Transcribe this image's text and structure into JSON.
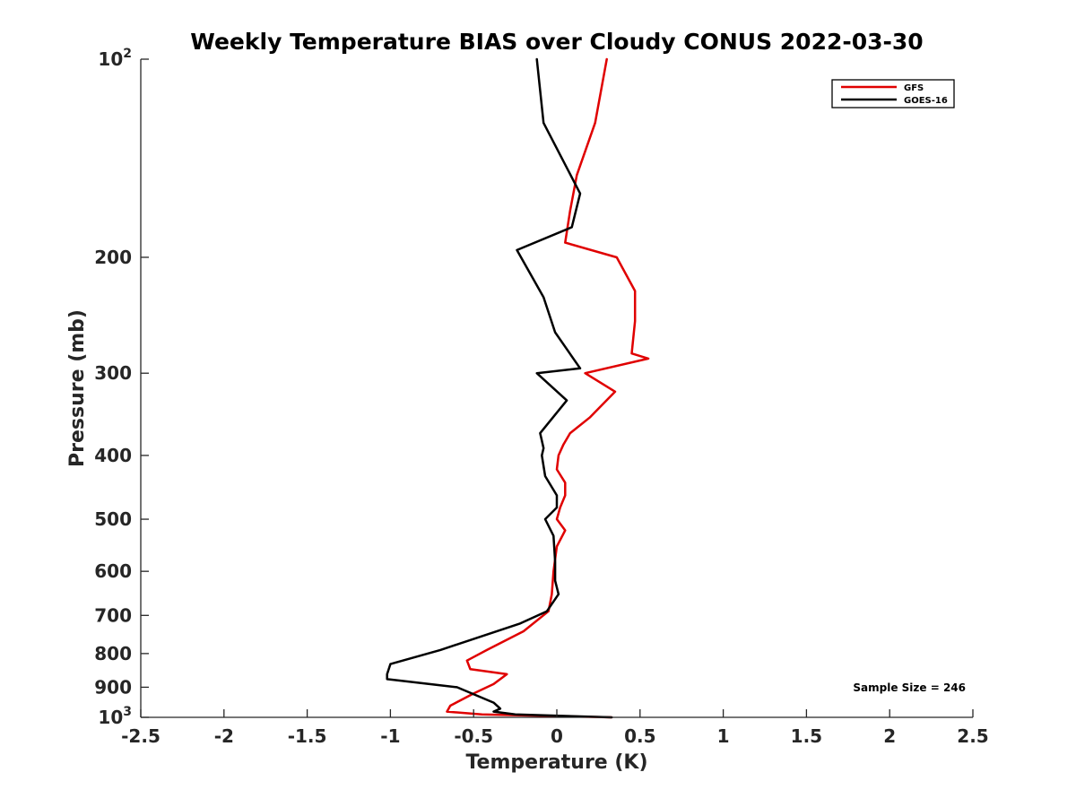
{
  "chart_data": {
    "type": "line",
    "title": "Weekly Temperature BIAS over Cloudy CONUS 2022-03-30",
    "xlabel": "Temperature (K)",
    "ylabel": "Pressure (mb)",
    "xlim": [
      -2.5,
      2.5
    ],
    "ylim": [
      100,
      1000
    ],
    "y_scale": "log",
    "y_reversed": true,
    "x_ticks": [
      -2.5,
      -2,
      -1.5,
      -1,
      -0.5,
      0,
      0.5,
      1,
      1.5,
      2,
      2.5
    ],
    "x_tick_labels": [
      "-2.5",
      "-2",
      "-1.5",
      "-1",
      "-0.5",
      "0",
      "0.5",
      "1",
      "1.5",
      "2",
      "2.5"
    ],
    "y_ticks": [
      {
        "value": 100,
        "base": "10",
        "exp": "2"
      },
      {
        "value": 200,
        "label": "200"
      },
      {
        "value": 300,
        "label": "300"
      },
      {
        "value": 400,
        "label": "400"
      },
      {
        "value": 500,
        "label": "500"
      },
      {
        "value": 600,
        "label": "600"
      },
      {
        "value": 700,
        "label": "700"
      },
      {
        "value": 800,
        "label": "800"
      },
      {
        "value": 900,
        "label": "900"
      },
      {
        "value": 1000,
        "base": "10",
        "exp": "3"
      }
    ],
    "legend_position": "top-right",
    "grid": false,
    "series": [
      {
        "name": "GFS",
        "color": "#e00000",
        "points": [
          [
            0.3,
            100
          ],
          [
            0.23,
            125
          ],
          [
            0.12,
            150
          ],
          [
            0.08,
            170
          ],
          [
            0.05,
            190
          ],
          [
            0.36,
            200
          ],
          [
            0.47,
            225
          ],
          [
            0.47,
            250
          ],
          [
            0.45,
            280
          ],
          [
            0.55,
            285
          ],
          [
            0.17,
            300
          ],
          [
            0.35,
            320
          ],
          [
            0.2,
            350
          ],
          [
            0.08,
            370
          ],
          [
            0.04,
            385
          ],
          [
            0.01,
            400
          ],
          [
            0.0,
            420
          ],
          [
            0.05,
            440
          ],
          [
            0.05,
            460
          ],
          [
            0.02,
            480
          ],
          [
            0.0,
            500
          ],
          [
            0.05,
            520
          ],
          [
            0.0,
            550
          ],
          [
            -0.02,
            600
          ],
          [
            -0.03,
            650
          ],
          [
            -0.05,
            690
          ],
          [
            -0.2,
            740
          ],
          [
            -0.42,
            790
          ],
          [
            -0.54,
            820
          ],
          [
            -0.52,
            845
          ],
          [
            -0.3,
            860
          ],
          [
            -0.38,
            890
          ],
          [
            -0.5,
            920
          ],
          [
            -0.64,
            960
          ],
          [
            -0.66,
            980
          ],
          [
            -0.45,
            990
          ],
          [
            0.33,
            1000
          ]
        ]
      },
      {
        "name": "GOES-16",
        "color": "#000000",
        "points": [
          [
            -0.12,
            100
          ],
          [
            -0.08,
            125
          ],
          [
            0.14,
            160
          ],
          [
            0.09,
            180
          ],
          [
            -0.24,
            195
          ],
          [
            -0.08,
            230
          ],
          [
            -0.01,
            260
          ],
          [
            0.14,
            295
          ],
          [
            -0.12,
            300
          ],
          [
            0.06,
            330
          ],
          [
            -0.1,
            370
          ],
          [
            -0.08,
            390
          ],
          [
            -0.09,
            400
          ],
          [
            -0.07,
            430
          ],
          [
            0.0,
            460
          ],
          [
            0.0,
            480
          ],
          [
            -0.07,
            500
          ],
          [
            -0.02,
            530
          ],
          [
            -0.01,
            580
          ],
          [
            -0.01,
            620
          ],
          [
            0.01,
            650
          ],
          [
            -0.06,
            690
          ],
          [
            -0.22,
            720
          ],
          [
            -0.7,
            790
          ],
          [
            -1.0,
            830
          ],
          [
            -1.02,
            860
          ],
          [
            -1.02,
            875
          ],
          [
            -0.6,
            900
          ],
          [
            -0.38,
            950
          ],
          [
            -0.34,
            970
          ],
          [
            -0.38,
            980
          ],
          [
            -0.25,
            990
          ],
          [
            0.33,
            1000
          ]
        ]
      }
    ],
    "annotation": "Sample Size = 246"
  }
}
